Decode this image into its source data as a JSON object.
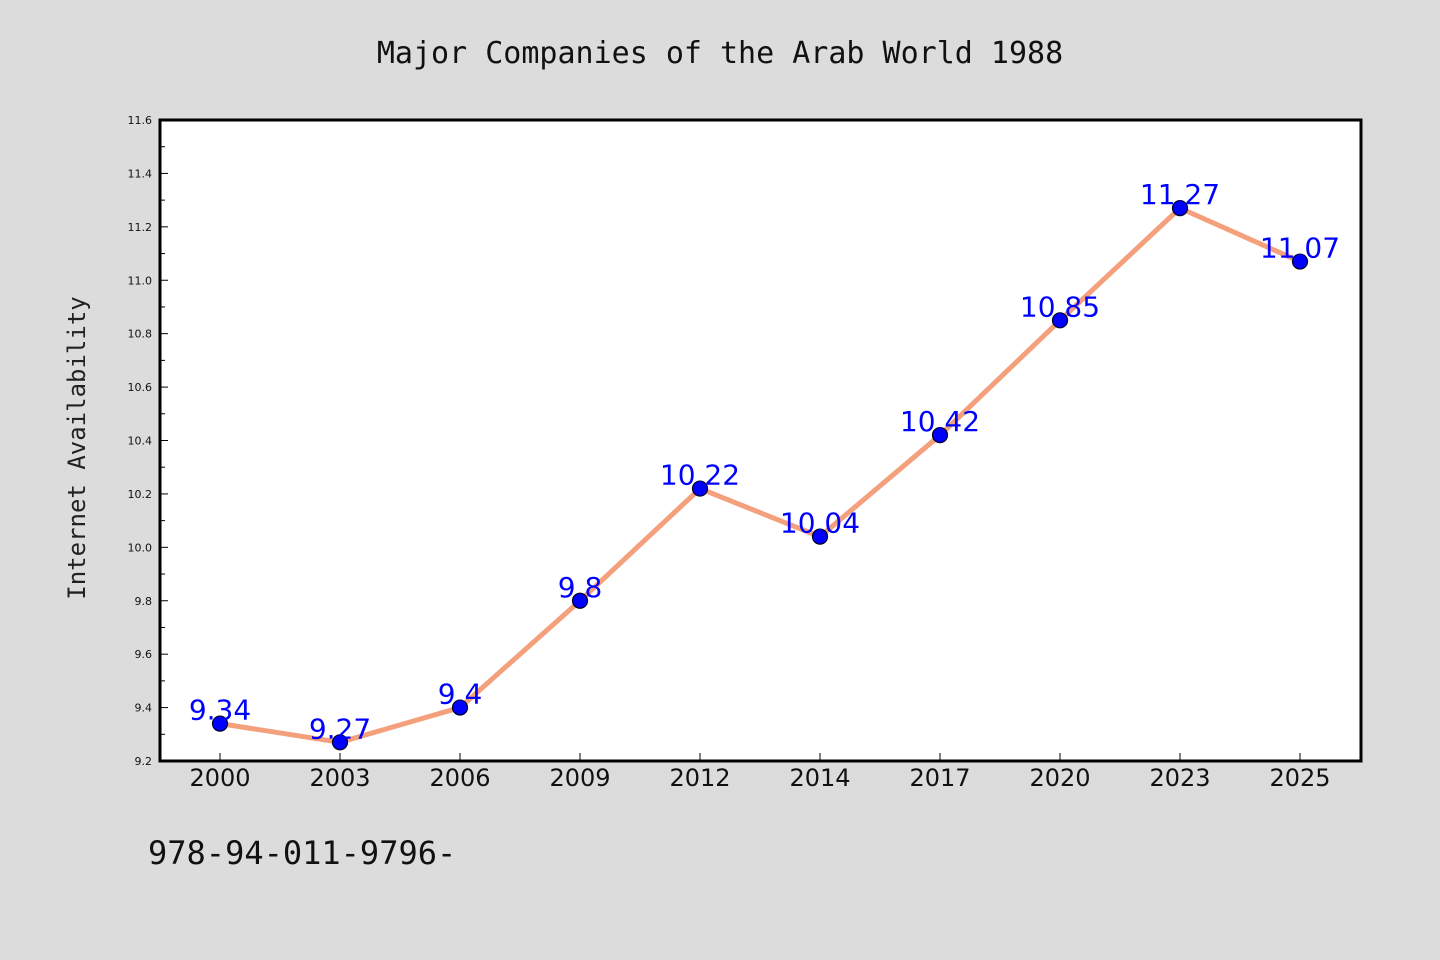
{
  "footer_text": "978-94-011-9796-",
  "colors": {
    "background": "#dcdcdc",
    "plot_background": "#ffffff",
    "line": "#f4a07c",
    "marker": "#0000ff",
    "data_label": "#0000ff"
  },
  "chart_data": {
    "type": "line",
    "title": "Major Companies of the Arab World 1988",
    "xlabel": "",
    "ylabel": "Internet Availability",
    "categories": [
      "2000",
      "2003",
      "2006",
      "2009",
      "2012",
      "2014",
      "2017",
      "2020",
      "2023",
      "2025"
    ],
    "series": [
      {
        "values": [
          9.34,
          9.27,
          9.4,
          9.8,
          10.22,
          10.04,
          10.42,
          10.85,
          11.27,
          11.07
        ],
        "data_labels": [
          "9.34",
          "9.27",
          "9.4",
          "9.8",
          "10.22",
          "10.04",
          "10.42",
          "10.85",
          "11.27",
          "11.07"
        ]
      }
    ],
    "ylim": [
      9.2,
      11.6
    ],
    "yticks": [
      "9.2",
      "9.4",
      "9.6",
      "9.8",
      "10.0",
      "10.2",
      "10.4",
      "10.6",
      "10.8",
      "11.0",
      "11.2",
      "11.4",
      "11.6"
    ],
    "grid": false,
    "legend": "none",
    "marker": "circle"
  }
}
